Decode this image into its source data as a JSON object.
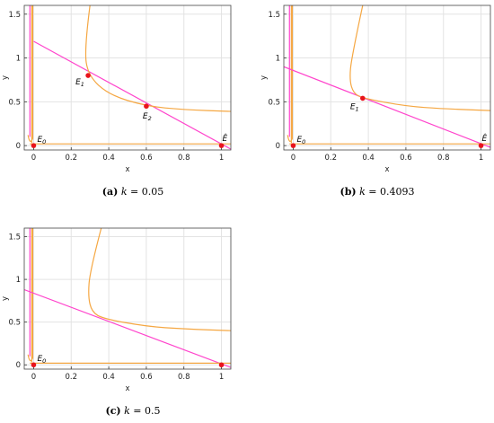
{
  "chart_data": [
    {
      "type": "line",
      "caption": {
        "tag": "(a)",
        "var": "k",
        "text": " = 0.05"
      },
      "xlabel": "x",
      "ylabel": "y",
      "xlim": [
        -0.05,
        1.05
      ],
      "ylim": [
        -0.05,
        1.6
      ],
      "xticks": [
        "0",
        "0.2",
        "0.4",
        "0.6",
        "0.8",
        "1"
      ],
      "yticks": [
        "0",
        "0.5",
        "1",
        "1.5"
      ],
      "grid": true,
      "series": [
        {
          "color": "#ff44cc",
          "kind": "y-nullcline",
          "values": [
            [
              0,
              1.19
            ],
            [
              1.05,
              -0.04
            ]
          ]
        },
        {
          "color": "#f5a742",
          "kind": "x-nullcline",
          "values": [
            [
              0.3,
              1.6
            ],
            [
              0.27,
              1.1
            ],
            [
              0.29,
              0.8
            ],
            [
              0.4,
              0.58
            ],
            [
              0.6,
              0.45
            ],
            [
              0.8,
              0.41
            ],
            [
              1.05,
              0.39
            ]
          ]
        },
        {
          "color": "#f5a742",
          "kind": "x-nullcline",
          "values": [
            [
              -0.02,
              0.02
            ],
            [
              1.05,
              0.02
            ]
          ]
        }
      ],
      "points": [
        {
          "label_base": "E",
          "sub": "0",
          "x": 0,
          "y": 0
        },
        {
          "label_base": "E",
          "sub": "1",
          "x": 0.29,
          "y": 0.8
        },
        {
          "label_base": "E",
          "sub": "2",
          "x": 0.6,
          "y": 0.45
        },
        {
          "label_base": "Ê",
          "sub": "",
          "x": 1,
          "y": 0
        }
      ]
    },
    {
      "type": "line",
      "caption": {
        "tag": "(b)",
        "var": "k",
        "text": " = 0.4093"
      },
      "xlabel": "x",
      "ylabel": "y",
      "xlim": [
        -0.05,
        1.05
      ],
      "ylim": [
        -0.05,
        1.6
      ],
      "xticks": [
        "0",
        "0.2",
        "0.4",
        "0.6",
        "0.8",
        "1"
      ],
      "yticks": [
        "0",
        "0.5",
        "1",
        "1.5"
      ],
      "grid": true,
      "series": [
        {
          "color": "#ff44cc",
          "kind": "y-nullcline",
          "values": [
            [
              -0.05,
              0.9
            ],
            [
              1.05,
              -0.02
            ]
          ]
        },
        {
          "color": "#f5a742",
          "kind": "x-nullcline",
          "values": [
            [
              0.37,
              1.6
            ],
            [
              0.31,
              1.0
            ],
            [
              0.3,
              0.75
            ],
            [
              0.32,
              0.6
            ],
            [
              0.37,
              0.54
            ],
            [
              0.6,
              0.45
            ],
            [
              0.8,
              0.42
            ],
            [
              1.05,
              0.4
            ]
          ]
        },
        {
          "color": "#f5a742",
          "kind": "x-nullcline",
          "values": [
            [
              -0.02,
              0.02
            ],
            [
              1.05,
              0.02
            ]
          ]
        }
      ],
      "points": [
        {
          "label_base": "E",
          "sub": "0",
          "x": 0,
          "y": 0
        },
        {
          "label_base": "E",
          "sub": "1",
          "x": 0.37,
          "y": 0.54
        },
        {
          "label_base": "Ê",
          "sub": "",
          "x": 1,
          "y": 0
        }
      ]
    },
    {
      "type": "line",
      "caption": {
        "tag": "(c)",
        "var": "k",
        "text": " = 0.5"
      },
      "xlabel": "x",
      "ylabel": "y",
      "xlim": [
        -0.05,
        1.05
      ],
      "ylim": [
        -0.05,
        1.6
      ],
      "xticks": [
        "0",
        "0.2",
        "0.4",
        "0.6",
        "0.8",
        "1"
      ],
      "yticks": [
        "0",
        "0.5",
        "1",
        "1.5"
      ],
      "grid": true,
      "series": [
        {
          "color": "#ff44cc",
          "kind": "y-nullcline",
          "values": [
            [
              -0.05,
              0.88
            ],
            [
              1.05,
              -0.03
            ]
          ]
        },
        {
          "color": "#f5a742",
          "kind": "x-nullcline",
          "values": [
            [
              0.36,
              1.6
            ],
            [
              0.3,
              1.1
            ],
            [
              0.29,
              0.8
            ],
            [
              0.31,
              0.62
            ],
            [
              0.37,
              0.54
            ],
            [
              0.6,
              0.45
            ],
            [
              0.8,
              0.42
            ],
            [
              1.05,
              0.4
            ]
          ]
        },
        {
          "color": "#f5a742",
          "kind": "x-nullcline",
          "values": [
            [
              -0.02,
              0.02
            ],
            [
              1.05,
              0.02
            ]
          ]
        }
      ],
      "points": [
        {
          "label_base": "E",
          "sub": "0",
          "x": 0,
          "y": 0
        },
        {
          "label_base": "",
          "sub": "",
          "x": 1,
          "y": 0
        }
      ]
    }
  ]
}
